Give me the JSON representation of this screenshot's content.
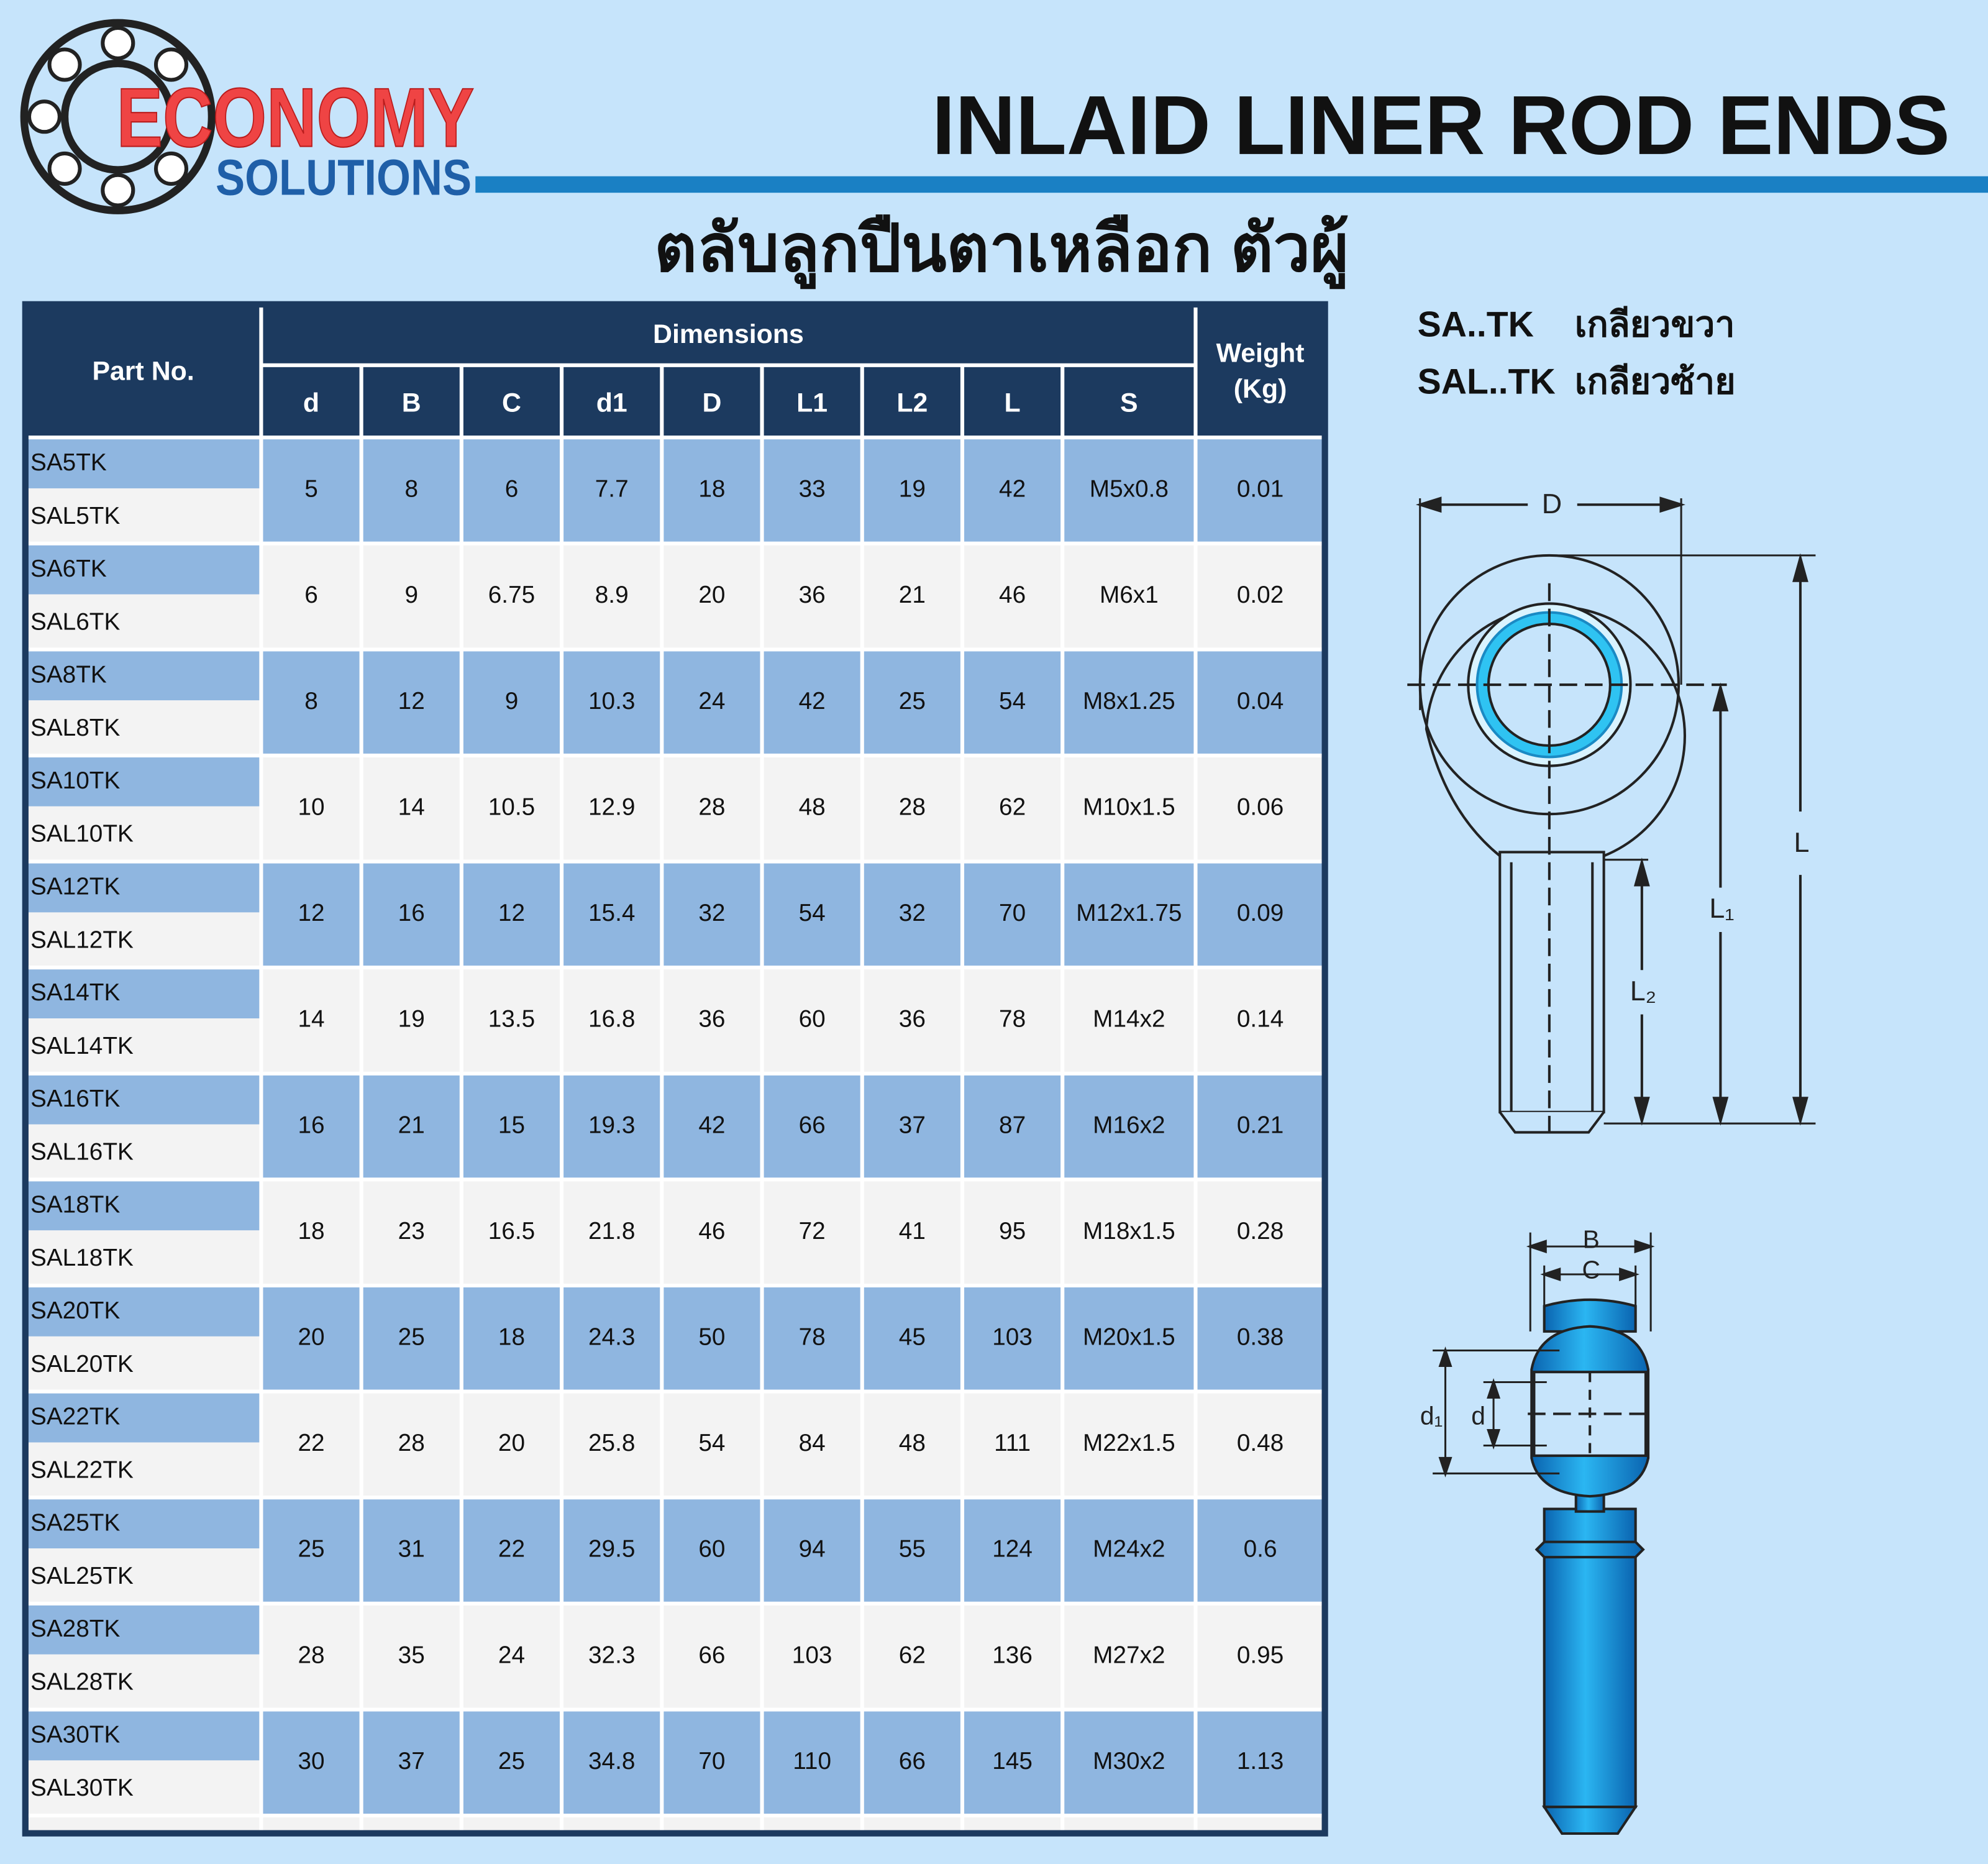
{
  "header": {
    "logo_top": "ECONOMY",
    "logo_bottom": "SOLUTIONS",
    "title": "INLAID LINER ROD ENDS",
    "subtitle": "ตลับลูกปืนตาเหลือก ตัวผู้"
  },
  "legend": [
    {
      "code": "SA..TK",
      "text": "เกลียวขวา"
    },
    {
      "code": "SAL..TK",
      "text": "เกลียวซ้าย"
    }
  ],
  "table": {
    "part_header": "Part No.",
    "group_header": "Dimensions",
    "weight_header": "Weight",
    "weight_unit": "(Kg)",
    "columns": [
      "d",
      "B",
      "C",
      "d1",
      "D",
      "L1",
      "L2",
      "L",
      "S"
    ],
    "rows": [
      {
        "parts": [
          "SA5TK",
          "SAL5TK"
        ],
        "values": [
          "5",
          "8",
          "6",
          "7.7",
          "18",
          "33",
          "19",
          "42",
          "M5x0.8",
          "0.01"
        ]
      },
      {
        "parts": [
          "SA6TK",
          "SAL6TK"
        ],
        "values": [
          "6",
          "9",
          "6.75",
          "8.9",
          "20",
          "36",
          "21",
          "46",
          "M6x1",
          "0.02"
        ]
      },
      {
        "parts": [
          "SA8TK",
          "SAL8TK"
        ],
        "values": [
          "8",
          "12",
          "9",
          "10.3",
          "24",
          "42",
          "25",
          "54",
          "M8x1.25",
          "0.04"
        ]
      },
      {
        "parts": [
          "SA10TK",
          "SAL10TK"
        ],
        "values": [
          "10",
          "14",
          "10.5",
          "12.9",
          "28",
          "48",
          "28",
          "62",
          "M10x1.5",
          "0.06"
        ]
      },
      {
        "parts": [
          "SA12TK",
          "SAL12TK"
        ],
        "values": [
          "12",
          "16",
          "12",
          "15.4",
          "32",
          "54",
          "32",
          "70",
          "M12x1.75",
          "0.09"
        ]
      },
      {
        "parts": [
          "SA14TK",
          "SAL14TK"
        ],
        "values": [
          "14",
          "19",
          "13.5",
          "16.8",
          "36",
          "60",
          "36",
          "78",
          "M14x2",
          "0.14"
        ]
      },
      {
        "parts": [
          "SA16TK",
          "SAL16TK"
        ],
        "values": [
          "16",
          "21",
          "15",
          "19.3",
          "42",
          "66",
          "37",
          "87",
          "M16x2",
          "0.21"
        ]
      },
      {
        "parts": [
          "SA18TK",
          "SAL18TK"
        ],
        "values": [
          "18",
          "23",
          "16.5",
          "21.8",
          "46",
          "72",
          "41",
          "95",
          "M18x1.5",
          "0.28"
        ]
      },
      {
        "parts": [
          "SA20TK",
          "SAL20TK"
        ],
        "values": [
          "20",
          "25",
          "18",
          "24.3",
          "50",
          "78",
          "45",
          "103",
          "M20x1.5",
          "0.38"
        ]
      },
      {
        "parts": [
          "SA22TK",
          "SAL22TK"
        ],
        "values": [
          "22",
          "28",
          "20",
          "25.8",
          "54",
          "84",
          "48",
          "111",
          "M22x1.5",
          "0.48"
        ]
      },
      {
        "parts": [
          "SA25TK",
          "SAL25TK"
        ],
        "values": [
          "25",
          "31",
          "22",
          "29.5",
          "60",
          "94",
          "55",
          "124",
          "M24x2",
          "0.6"
        ]
      },
      {
        "parts": [
          "SA28TK",
          "SAL28TK"
        ],
        "values": [
          "28",
          "35",
          "24",
          "32.3",
          "66",
          "103",
          "62",
          "136",
          "M27x2",
          "0.95"
        ]
      },
      {
        "parts": [
          "SA30TK",
          "SAL30TK"
        ],
        "values": [
          "30",
          "37",
          "25",
          "34.8",
          "70",
          "110",
          "66",
          "145",
          "M30x2",
          "1.13"
        ]
      }
    ]
  },
  "diagram": {
    "labels": [
      "D",
      "L",
      "L₁",
      "L₂",
      "B",
      "C",
      "d₁",
      "d"
    ]
  }
}
